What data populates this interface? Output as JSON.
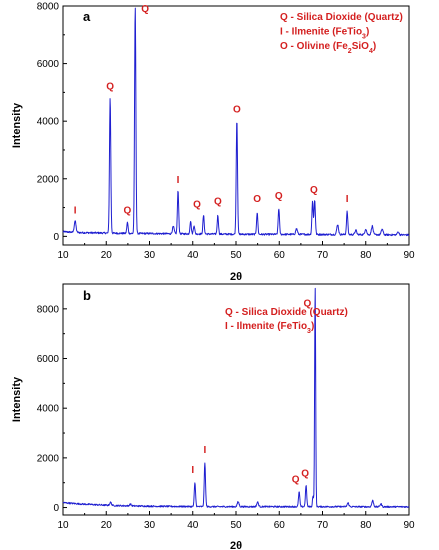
{
  "colors": {
    "line": "#1f1fd0",
    "label": "#d42020",
    "axis": "#000000"
  },
  "chart_data": [
    {
      "type": "line",
      "panel_letter": "a",
      "xlabel": "2θ",
      "ylabel": "Intensity",
      "xlim": [
        10,
        90
      ],
      "ylim": [
        -300,
        8000
      ],
      "xticks": [
        10,
        20,
        30,
        40,
        50,
        60,
        70,
        80,
        90
      ],
      "yticks": [
        0,
        2000,
        4000,
        6000,
        8000
      ],
      "legend_position": "top-right",
      "legend": [
        {
          "text": "Q - Silica Dioxide (Quartz)"
        },
        {
          "text": "I - Ilmenite (FeTio",
          "sub": "3",
          "end": ")"
        },
        {
          "text": "O - Olivine (Fe",
          "sub": "2",
          "mid": "SiO",
          "sub2": "4",
          "end": ")"
        }
      ],
      "baseline": [
        [
          10,
          160
        ],
        [
          14,
          130
        ],
        [
          18,
          120
        ],
        [
          22,
          110
        ],
        [
          26,
          100
        ],
        [
          30,
          100
        ],
        [
          35,
          90
        ],
        [
          40,
          85
        ],
        [
          45,
          80
        ],
        [
          50,
          75
        ],
        [
          55,
          70
        ],
        [
          60,
          70
        ],
        [
          65,
          70
        ],
        [
          70,
          65
        ],
        [
          75,
          65
        ],
        [
          80,
          60
        ],
        [
          85,
          55
        ],
        [
          90,
          50
        ]
      ],
      "peaks": [
        {
          "x": 12.8,
          "h": 400,
          "w": 0.2
        },
        {
          "x": 20.9,
          "h": 4700,
          "w": 0.15
        },
        {
          "x": 24.9,
          "h": 380,
          "w": 0.15
        },
        {
          "x": 26.7,
          "h": 7900,
          "w": 0.15
        },
        {
          "x": 35.5,
          "h": 250,
          "w": 0.2
        },
        {
          "x": 36.6,
          "h": 1500,
          "w": 0.15
        },
        {
          "x": 39.5,
          "h": 450,
          "w": 0.15
        },
        {
          "x": 40.3,
          "h": 300,
          "w": 0.15
        },
        {
          "x": 42.5,
          "h": 650,
          "w": 0.15
        },
        {
          "x": 45.8,
          "h": 650,
          "w": 0.15
        },
        {
          "x": 50.2,
          "h": 4000,
          "w": 0.15
        },
        {
          "x": 54.9,
          "h": 750,
          "w": 0.15
        },
        {
          "x": 59.9,
          "h": 900,
          "w": 0.15
        },
        {
          "x": 64.0,
          "h": 200,
          "w": 0.2
        },
        {
          "x": 67.7,
          "h": 1150,
          "w": 0.15
        },
        {
          "x": 68.2,
          "h": 1200,
          "w": 0.15
        },
        {
          "x": 73.5,
          "h": 350,
          "w": 0.2
        },
        {
          "x": 75.7,
          "h": 800,
          "w": 0.15
        },
        {
          "x": 77.7,
          "h": 150,
          "w": 0.2
        },
        {
          "x": 80.0,
          "h": 200,
          "w": 0.2
        },
        {
          "x": 81.5,
          "h": 300,
          "w": 0.2
        },
        {
          "x": 83.8,
          "h": 200,
          "w": 0.2
        },
        {
          "x": 87.5,
          "h": 100,
          "w": 0.2
        }
      ],
      "peak_labels": [
        {
          "x": 12.8,
          "y": 800,
          "text": "I"
        },
        {
          "x": 20.9,
          "y": 5100,
          "text": "Q"
        },
        {
          "x": 24.9,
          "y": 800,
          "text": "Q"
        },
        {
          "x": 29.0,
          "y": 7800,
          "text": "Q"
        },
        {
          "x": 36.6,
          "y": 1850,
          "text": "I"
        },
        {
          "x": 41.0,
          "y": 1000,
          "text": "Q"
        },
        {
          "x": 45.8,
          "y": 1100,
          "text": "Q"
        },
        {
          "x": 50.2,
          "y": 4300,
          "text": "O"
        },
        {
          "x": 54.9,
          "y": 1200,
          "text": "O"
        },
        {
          "x": 59.9,
          "y": 1300,
          "text": "Q"
        },
        {
          "x": 68.0,
          "y": 1500,
          "text": "Q"
        },
        {
          "x": 75.7,
          "y": 1200,
          "text": "I"
        }
      ]
    },
    {
      "type": "line",
      "panel_letter": "b",
      "xlabel": "2θ",
      "ylabel": "Intensity",
      "xlim": [
        10,
        90
      ],
      "ylim": [
        -300,
        9000
      ],
      "xticks": [
        10,
        20,
        30,
        40,
        50,
        60,
        70,
        80,
        90
      ],
      "yticks": [
        0,
        2000,
        4000,
        6000,
        8000
      ],
      "legend_position": "top-center",
      "legend": [
        {
          "text": "Q - Silica Dioxide (Quartz)"
        },
        {
          "text": "I - Ilmenite (FeTio",
          "sub": "3",
          "end": ")"
        }
      ],
      "baseline": [
        [
          10,
          200
        ],
        [
          12,
          170
        ],
        [
          14,
          145
        ],
        [
          18,
          110
        ],
        [
          22,
          80
        ],
        [
          26,
          65
        ],
        [
          30,
          55
        ],
        [
          35,
          45
        ],
        [
          40,
          40
        ],
        [
          45,
          35
        ],
        [
          50,
          35
        ],
        [
          55,
          35
        ],
        [
          60,
          35
        ],
        [
          65,
          35
        ],
        [
          70,
          35
        ],
        [
          75,
          35
        ],
        [
          80,
          30
        ],
        [
          85,
          30
        ],
        [
          90,
          30
        ]
      ],
      "peaks": [
        {
          "x": 21.0,
          "h": 120,
          "w": 0.2
        },
        {
          "x": 25.6,
          "h": 70,
          "w": 0.2
        },
        {
          "x": 40.5,
          "h": 950,
          "w": 0.15
        },
        {
          "x": 42.8,
          "h": 1750,
          "w": 0.15
        },
        {
          "x": 50.5,
          "h": 200,
          "w": 0.2
        },
        {
          "x": 55.0,
          "h": 180,
          "w": 0.2
        },
        {
          "x": 64.6,
          "h": 600,
          "w": 0.15
        },
        {
          "x": 66.2,
          "h": 850,
          "w": 0.15
        },
        {
          "x": 67.8,
          "h": 450,
          "w": 0.12
        },
        {
          "x": 68.3,
          "h": 8900,
          "w": 0.12
        },
        {
          "x": 75.9,
          "h": 150,
          "w": 0.2
        },
        {
          "x": 81.6,
          "h": 250,
          "w": 0.2
        },
        {
          "x": 83.5,
          "h": 120,
          "w": 0.2
        }
      ],
      "peak_labels": [
        {
          "x": 40.0,
          "y": 1400,
          "text": "I"
        },
        {
          "x": 42.8,
          "y": 2200,
          "text": "I"
        },
        {
          "x": 63.8,
          "y": 1000,
          "text": "Q"
        },
        {
          "x": 66.0,
          "y": 1250,
          "text": "Q"
        },
        {
          "x": 66.5,
          "y": 8100,
          "text": "Q"
        }
      ]
    }
  ]
}
